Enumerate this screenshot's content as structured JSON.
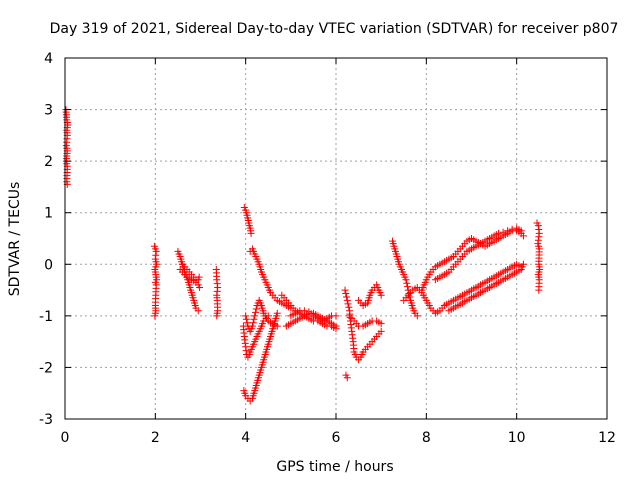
{
  "chart_data": {
    "type": "scatter",
    "title": "Day 319 of 2021, Sidereal Day-to-day VTEC variation (SDTVAR) for receiver p807",
    "xlabel": "GPS time / hours",
    "ylabel": "SDTVAR / TECUs",
    "xlim": [
      0,
      12
    ],
    "ylim": [
      -3,
      4
    ],
    "xticks": [
      0,
      2,
      4,
      6,
      8,
      10,
      12
    ],
    "yticks": [
      -3,
      -2,
      -1,
      0,
      1,
      2,
      3,
      4
    ],
    "grid": true,
    "marker": "+",
    "color": "#ff0000",
    "segments": [
      [
        [
          0.02,
          3.0
        ],
        [
          0.03,
          2.9
        ],
        [
          0.04,
          2.8
        ],
        [
          0.05,
          2.75
        ],
        [
          0.06,
          2.7
        ],
        [
          0.04,
          2.6
        ],
        [
          0.05,
          2.5
        ],
        [
          0.03,
          2.3
        ],
        [
          0.05,
          2.2
        ],
        [
          0.04,
          2.1
        ],
        [
          0.03,
          2.0
        ],
        [
          0.05,
          1.9
        ],
        [
          0.04,
          1.6
        ],
        [
          0.05,
          1.55
        ]
      ],
      [
        [
          1.98,
          0.35
        ],
        [
          2.0,
          0.3
        ],
        [
          2.02,
          0.25
        ],
        [
          2.0,
          0.1
        ],
        [
          2.03,
          0.0
        ],
        [
          1.99,
          -0.1
        ],
        [
          2.01,
          -0.2
        ],
        [
          2.03,
          -0.3
        ],
        [
          2.0,
          -0.35
        ],
        [
          2.02,
          -0.4
        ],
        [
          2.0,
          -0.8
        ],
        [
          2.01,
          -0.9
        ],
        [
          1.99,
          -1.0
        ]
      ],
      [
        [
          2.5,
          0.25
        ],
        [
          2.55,
          0.15
        ],
        [
          2.58,
          0.05
        ],
        [
          2.62,
          -0.05
        ],
        [
          2.65,
          -0.15
        ],
        [
          2.7,
          -0.25
        ],
        [
          2.75,
          -0.4
        ],
        [
          2.8,
          -0.55
        ],
        [
          2.85,
          -0.7
        ],
        [
          2.9,
          -0.85
        ],
        [
          2.95,
          -0.9
        ]
      ],
      [
        [
          2.55,
          -0.1
        ],
        [
          2.6,
          -0.15
        ],
        [
          2.65,
          -0.2
        ],
        [
          2.7,
          -0.25
        ],
        [
          2.75,
          -0.28
        ],
        [
          2.8,
          -0.3
        ],
        [
          2.85,
          -0.32
        ],
        [
          2.9,
          -0.35
        ],
        [
          2.95,
          -0.4
        ],
        [
          2.98,
          -0.45
        ]
      ],
      [
        [
          2.6,
          0.0
        ],
        [
          2.65,
          -0.05
        ],
        [
          2.7,
          -0.1
        ],
        [
          2.75,
          -0.15
        ],
        [
          2.8,
          -0.2
        ],
        [
          2.85,
          -0.25
        ],
        [
          2.9,
          -0.3
        ],
        [
          2.95,
          -0.3
        ],
        [
          2.97,
          -0.25
        ]
      ],
      [
        [
          3.35,
          -0.1
        ],
        [
          3.36,
          -0.3
        ],
        [
          3.38,
          -0.45
        ],
        [
          3.36,
          -0.6
        ],
        [
          3.37,
          -0.7
        ],
        [
          3.38,
          -0.9
        ],
        [
          3.36,
          -1.0
        ]
      ],
      [
        [
          3.97,
          1.1
        ],
        [
          4.0,
          1.05
        ],
        [
          4.03,
          0.95
        ],
        [
          4.06,
          0.85
        ],
        [
          4.08,
          0.75
        ],
        [
          4.1,
          0.7
        ],
        [
          4.12,
          0.6
        ]
      ],
      [
        [
          3.95,
          -1.2
        ],
        [
          3.97,
          -1.4
        ],
        [
          4.0,
          -1.6
        ],
        [
          4.02,
          -1.75
        ],
        [
          4.05,
          -1.8
        ],
        [
          4.08,
          -1.75
        ],
        [
          4.1,
          -1.7
        ],
        [
          4.15,
          -1.6
        ],
        [
          4.2,
          -1.5
        ],
        [
          4.25,
          -1.4
        ],
        [
          4.3,
          -1.3
        ],
        [
          4.35,
          -1.2
        ],
        [
          4.4,
          -1.1
        ],
        [
          4.45,
          -1.05
        ],
        [
          4.5,
          -1.0
        ]
      ],
      [
        [
          3.96,
          -2.45
        ],
        [
          4.0,
          -2.55
        ],
        [
          4.05,
          -2.6
        ],
        [
          4.1,
          -2.65
        ],
        [
          4.15,
          -2.6
        ],
        [
          4.2,
          -2.45
        ],
        [
          4.25,
          -2.3
        ],
        [
          4.3,
          -2.15
        ],
        [
          4.35,
          -2.0
        ],
        [
          4.4,
          -1.85
        ],
        [
          4.45,
          -1.7
        ],
        [
          4.5,
          -1.55
        ],
        [
          4.55,
          -1.4
        ],
        [
          4.6,
          -1.25
        ],
        [
          4.65,
          -1.1
        ],
        [
          4.7,
          -0.95
        ]
      ],
      [
        [
          4.1,
          0.25
        ],
        [
          4.15,
          0.3
        ],
        [
          4.2,
          0.2
        ],
        [
          4.25,
          0.1
        ],
        [
          4.3,
          0.0
        ],
        [
          4.35,
          -0.15
        ],
        [
          4.4,
          -0.25
        ],
        [
          4.45,
          -0.35
        ],
        [
          4.5,
          -0.45
        ],
        [
          4.55,
          -0.55
        ],
        [
          4.6,
          -0.6
        ],
        [
          4.7,
          -0.7
        ],
        [
          4.8,
          -0.75
        ],
        [
          4.9,
          -0.8
        ],
        [
          5.0,
          -0.85
        ]
      ],
      [
        [
          4.0,
          -1.0
        ],
        [
          4.05,
          -1.2
        ],
        [
          4.1,
          -1.3
        ],
        [
          4.15,
          -1.2
        ],
        [
          4.2,
          -1.0
        ],
        [
          4.25,
          -0.8
        ],
        [
          4.3,
          -0.7
        ],
        [
          4.35,
          -0.8
        ],
        [
          4.4,
          -0.95
        ],
        [
          4.5,
          -1.1
        ],
        [
          4.6,
          -1.15
        ],
        [
          4.7,
          -1.2
        ]
      ],
      [
        [
          4.8,
          -0.6
        ],
        [
          4.9,
          -0.7
        ],
        [
          5.0,
          -0.8
        ],
        [
          5.1,
          -0.9
        ],
        [
          5.2,
          -0.95
        ],
        [
          5.3,
          -1.0
        ],
        [
          5.4,
          -1.05
        ],
        [
          5.5,
          -1.1
        ],
        [
          5.6,
          -1.1
        ],
        [
          5.7,
          -1.15
        ],
        [
          5.8,
          -1.2
        ],
        [
          5.9,
          -1.2
        ],
        [
          6.0,
          -1.25
        ]
      ],
      [
        [
          4.9,
          -1.2
        ],
        [
          5.0,
          -1.15
        ],
        [
          5.1,
          -1.1
        ],
        [
          5.2,
          -1.05
        ],
        [
          5.3,
          -1.0
        ],
        [
          5.4,
          -0.95
        ],
        [
          5.5,
          -0.95
        ],
        [
          5.6,
          -1.0
        ],
        [
          5.7,
          -1.05
        ],
        [
          5.8,
          -1.1
        ],
        [
          5.9,
          -1.15
        ],
        [
          6.0,
          -1.2
        ]
      ],
      [
        [
          5.0,
          -1.0
        ],
        [
          5.1,
          -0.95
        ],
        [
          5.2,
          -0.9
        ],
        [
          5.3,
          -0.9
        ],
        [
          5.4,
          -0.92
        ],
        [
          5.5,
          -1.0
        ],
        [
          5.6,
          -1.05
        ],
        [
          5.7,
          -1.1
        ],
        [
          5.8,
          -1.05
        ],
        [
          5.9,
          -1.0
        ],
        [
          6.0,
          -1.0
        ]
      ],
      [
        [
          6.2,
          -0.5
        ],
        [
          6.25,
          -0.7
        ],
        [
          6.3,
          -0.9
        ],
        [
          6.32,
          -1.1
        ],
        [
          6.35,
          -1.3
        ],
        [
          6.38,
          -1.5
        ],
        [
          6.4,
          -1.7
        ],
        [
          6.45,
          -1.8
        ],
        [
          6.5,
          -1.85
        ],
        [
          6.55,
          -1.8
        ],
        [
          6.6,
          -1.7
        ],
        [
          6.7,
          -1.6
        ],
        [
          6.8,
          -1.5
        ],
        [
          6.9,
          -1.4
        ],
        [
          7.0,
          -1.3
        ]
      ],
      [
        [
          6.3,
          -1.0
        ],
        [
          6.4,
          -1.1
        ],
        [
          6.5,
          -1.2
        ],
        [
          6.6,
          -1.2
        ],
        [
          6.7,
          -1.15
        ],
        [
          6.8,
          -1.1
        ],
        [
          6.9,
          -1.1
        ],
        [
          7.0,
          -1.15
        ]
      ],
      [
        [
          6.5,
          -0.7
        ],
        [
          6.6,
          -0.8
        ],
        [
          6.7,
          -0.75
        ],
        [
          6.75,
          -0.6
        ],
        [
          6.8,
          -0.5
        ],
        [
          6.85,
          -0.45
        ],
        [
          6.9,
          -0.4
        ],
        [
          6.95,
          -0.5
        ],
        [
          7.0,
          -0.6
        ]
      ],
      [
        [
          6.22,
          -2.15
        ],
        [
          6.25,
          -2.2
        ]
      ],
      [
        [
          7.25,
          0.45
        ],
        [
          7.3,
          0.3
        ],
        [
          7.35,
          0.15
        ],
        [
          7.4,
          0.0
        ],
        [
          7.45,
          -0.1
        ],
        [
          7.5,
          -0.2
        ],
        [
          7.55,
          -0.3
        ],
        [
          7.6,
          -0.5
        ],
        [
          7.65,
          -0.7
        ],
        [
          7.7,
          -0.85
        ],
        [
          7.75,
          -0.95
        ],
        [
          7.8,
          -1.0
        ]
      ],
      [
        [
          7.5,
          -0.7
        ],
        [
          7.6,
          -0.6
        ],
        [
          7.7,
          -0.5
        ],
        [
          7.8,
          -0.45
        ],
        [
          7.9,
          -0.55
        ],
        [
          8.0,
          -0.7
        ],
        [
          8.1,
          -0.85
        ],
        [
          8.2,
          -0.95
        ],
        [
          8.3,
          -0.9
        ],
        [
          8.4,
          -0.8
        ],
        [
          8.5,
          -0.75
        ],
        [
          8.6,
          -0.7
        ],
        [
          8.7,
          -0.65
        ],
        [
          8.8,
          -0.6
        ],
        [
          8.9,
          -0.55
        ],
        [
          9.0,
          -0.5
        ],
        [
          9.1,
          -0.45
        ],
        [
          9.2,
          -0.4
        ],
        [
          9.3,
          -0.35
        ],
        [
          9.4,
          -0.3
        ],
        [
          9.5,
          -0.25
        ],
        [
          9.6,
          -0.2
        ],
        [
          9.7,
          -0.15
        ],
        [
          9.8,
          -0.1
        ],
        [
          9.9,
          -0.05
        ],
        [
          10.0,
          0.0
        ],
        [
          10.1,
          -0.05
        ]
      ],
      [
        [
          7.9,
          -0.5
        ],
        [
          8.0,
          -0.3
        ],
        [
          8.1,
          -0.15
        ],
        [
          8.2,
          -0.05
        ],
        [
          8.3,
          0.0
        ],
        [
          8.4,
          0.05
        ],
        [
          8.5,
          0.1
        ],
        [
          8.6,
          0.15
        ],
        [
          8.7,
          0.25
        ],
        [
          8.8,
          0.35
        ],
        [
          8.9,
          0.45
        ],
        [
          9.0,
          0.5
        ],
        [
          9.1,
          0.45
        ],
        [
          9.2,
          0.4
        ],
        [
          9.3,
          0.35
        ],
        [
          9.4,
          0.4
        ],
        [
          9.5,
          0.45
        ],
        [
          9.6,
          0.5
        ],
        [
          9.7,
          0.55
        ],
        [
          9.8,
          0.6
        ],
        [
          9.9,
          0.65
        ],
        [
          10.0,
          0.65
        ],
        [
          10.1,
          0.6
        ],
        [
          10.15,
          0.55
        ]
      ],
      [
        [
          8.2,
          -0.3
        ],
        [
          8.3,
          -0.25
        ],
        [
          8.4,
          -0.2
        ],
        [
          8.5,
          -0.15
        ],
        [
          8.6,
          -0.05
        ],
        [
          8.7,
          0.05
        ],
        [
          8.8,
          0.15
        ],
        [
          8.9,
          0.25
        ],
        [
          9.0,
          0.3
        ],
        [
          9.1,
          0.35
        ],
        [
          9.2,
          0.4
        ],
        [
          9.3,
          0.45
        ],
        [
          9.4,
          0.5
        ],
        [
          9.5,
          0.55
        ],
        [
          9.6,
          0.6
        ],
        [
          9.7,
          0.62
        ],
        [
          9.8,
          0.65
        ],
        [
          9.9,
          0.68
        ],
        [
          10.0,
          0.7
        ],
        [
          10.1,
          0.65
        ]
      ],
      [
        [
          8.5,
          -0.9
        ],
        [
          8.6,
          -0.85
        ],
        [
          8.7,
          -0.8
        ],
        [
          8.8,
          -0.75
        ],
        [
          8.9,
          -0.7
        ],
        [
          9.0,
          -0.65
        ],
        [
          9.1,
          -0.6
        ],
        [
          9.2,
          -0.55
        ],
        [
          9.3,
          -0.5
        ],
        [
          9.4,
          -0.45
        ],
        [
          9.5,
          -0.4
        ],
        [
          9.6,
          -0.35
        ],
        [
          9.7,
          -0.3
        ],
        [
          9.8,
          -0.25
        ],
        [
          9.9,
          -0.2
        ],
        [
          10.0,
          -0.15
        ],
        [
          10.1,
          -0.1
        ],
        [
          10.15,
          0.0
        ]
      ],
      [
        [
          10.45,
          0.8
        ],
        [
          10.48,
          0.75
        ],
        [
          10.5,
          0.6
        ],
        [
          10.47,
          0.4
        ],
        [
          10.5,
          0.3
        ],
        [
          10.49,
          0.0
        ],
        [
          10.51,
          -0.1
        ],
        [
          10.48,
          -0.2
        ],
        [
          10.5,
          -0.3
        ],
        [
          10.49,
          -0.5
        ]
      ]
    ]
  }
}
